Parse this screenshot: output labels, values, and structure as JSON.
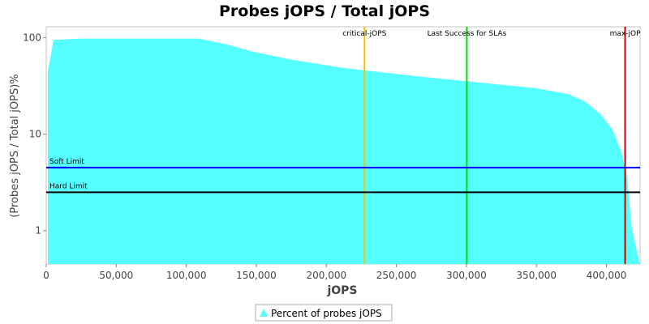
{
  "chart_data": {
    "type": "area",
    "title": "Probes jOPS / Total jOPS",
    "x_label": "jOPS",
    "y_label": "(Probes jOPS / Total jOPS)%",
    "xlim": [
      0,
      424000
    ],
    "ylim": [
      0.45,
      130
    ],
    "y_scale": "log",
    "xticks": [
      {
        "value": 0,
        "label": "0"
      },
      {
        "value": 50000,
        "label": "50,000"
      },
      {
        "value": 100000,
        "label": "100,000"
      },
      {
        "value": 150000,
        "label": "150,000"
      },
      {
        "value": 200000,
        "label": "200,000"
      },
      {
        "value": 250000,
        "label": "250,000"
      },
      {
        "value": 300000,
        "label": "300,000"
      },
      {
        "value": 350000,
        "label": "350,000"
      },
      {
        "value": 400000,
        "label": "400,000"
      }
    ],
    "yticks": [
      1,
      10,
      100
    ],
    "series": [
      {
        "name": "Percent of probes jOPS",
        "color": "#55ffff",
        "x": [
          1160,
          5200,
          24900,
          109000,
          129300,
          146700,
          175700,
          210400,
          256800,
          303200,
          349600,
          372800,
          384300,
          396000,
          404600,
          410400,
          414500,
          418000,
          423800
        ],
        "values": [
          45,
          95,
          98,
          98,
          85,
          72,
          59,
          49,
          41,
          35,
          30,
          26,
          22,
          16,
          11,
          6.6,
          3.75,
          1.07,
          0.45
        ]
      }
    ],
    "x_markers": [
      {
        "label": "critical-jOPS",
        "value": 227250,
        "color": "#f5c400"
      },
      {
        "label": "Last Success for SLAs",
        "value": 300290,
        "color": "#00e000"
      },
      {
        "label": "max-jOP",
        "value": 413330,
        "color": "#d00000"
      }
    ],
    "y_markers": [
      {
        "label": "Soft Limit",
        "value": 4.5,
        "color": "#0000ff"
      },
      {
        "label": "Hard Limit",
        "value": 2.5,
        "color": "#000000"
      }
    ]
  }
}
